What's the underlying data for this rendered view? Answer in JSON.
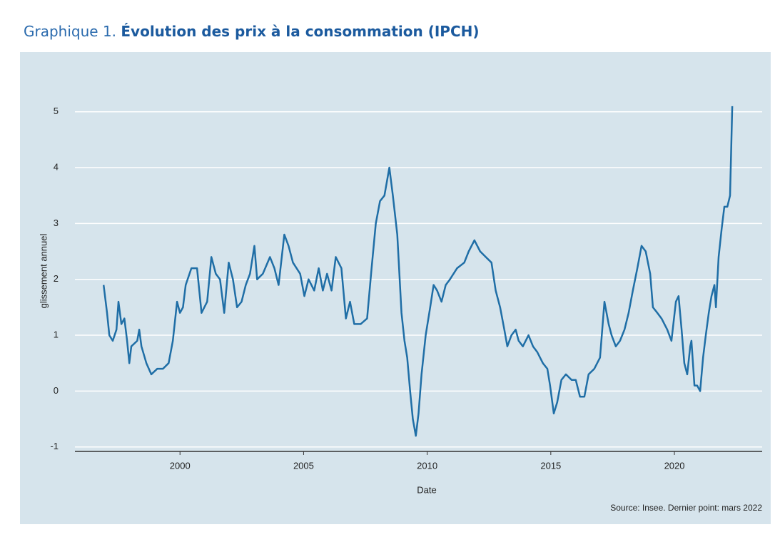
{
  "chart_data": {
    "type": "line",
    "title_prefix": "Graphique 1.",
    "title": "Évolution des prix à la consommation (IPCH)",
    "ylabel": "glissement annuel",
    "xlabel": "Date",
    "source": "Source: Insee. Dernier point: mars 2022",
    "color": "#1f6ea6",
    "grid": true,
    "xlim": [
      1995.75,
      2023.55
    ],
    "ylim": [
      -1.08,
      5.66
    ],
    "xticks": [
      2000,
      2005,
      2010,
      2015,
      2020
    ],
    "yticks": [
      -1,
      0,
      1,
      2,
      3,
      4,
      5
    ],
    "x": [
      1996.91,
      1997.05,
      1997.14,
      1997.28,
      1997.43,
      1997.51,
      1997.63,
      1997.75,
      1997.86,
      1997.95,
      1998.03,
      1998.27,
      1998.35,
      1998.44,
      1998.64,
      1998.84,
      1999.08,
      1999.31,
      1999.54,
      1999.71,
      1999.88,
      2000.0,
      2000.12,
      2000.23,
      2000.46,
      2000.69,
      2000.87,
      2001.1,
      2001.27,
      2001.45,
      2001.62,
      2001.79,
      2001.97,
      2002.14,
      2002.31,
      2002.49,
      2002.66,
      2002.83,
      2003.01,
      2003.12,
      2003.35,
      2003.64,
      2003.82,
      2003.99,
      2004.22,
      2004.39,
      2004.57,
      2004.86,
      2005.03,
      2005.2,
      2005.43,
      2005.61,
      2005.78,
      2005.95,
      2006.13,
      2006.3,
      2006.53,
      2006.71,
      2006.88,
      2007.05,
      2007.31,
      2007.57,
      2007.75,
      2007.92,
      2008.09,
      2008.27,
      2008.47,
      2008.61,
      2008.79,
      2008.96,
      2009.08,
      2009.19,
      2009.31,
      2009.42,
      2009.54,
      2009.65,
      2009.77,
      2009.94,
      2010.12,
      2010.26,
      2010.4,
      2010.58,
      2010.75,
      2010.92,
      2011.21,
      2011.5,
      2011.68,
      2011.91,
      2012.14,
      2012.37,
      2012.6,
      2012.77,
      2012.95,
      2013.12,
      2013.24,
      2013.41,
      2013.58,
      2013.7,
      2013.87,
      2014.1,
      2014.28,
      2014.45,
      2014.68,
      2014.86,
      2014.97,
      2015.12,
      2015.26,
      2015.43,
      2015.61,
      2015.84,
      2016.01,
      2016.18,
      2016.36,
      2016.53,
      2016.76,
      2016.99,
      2017.17,
      2017.34,
      2017.46,
      2017.63,
      2017.8,
      2017.98,
      2018.15,
      2018.32,
      2018.5,
      2018.67,
      2018.84,
      2019.02,
      2019.13,
      2019.31,
      2019.48,
      2019.71,
      2019.88,
      2020.06,
      2020.17,
      2020.29,
      2020.4,
      2020.52,
      2020.64,
      2020.69,
      2020.81,
      2020.92,
      2021.04,
      2021.16,
      2021.27,
      2021.39,
      2021.5,
      2021.62,
      2021.68,
      2021.79,
      2021.91,
      2022.02,
      2022.14,
      2022.25,
      2022.34
    ],
    "values": [
      1.9,
      1.4,
      1.0,
      0.9,
      1.1,
      1.6,
      1.2,
      1.3,
      0.9,
      0.5,
      0.8,
      0.9,
      1.1,
      0.8,
      0.5,
      0.3,
      0.4,
      0.4,
      0.5,
      0.9,
      1.6,
      1.4,
      1.5,
      1.9,
      2.2,
      2.2,
      1.4,
      1.6,
      2.4,
      2.1,
      2.0,
      1.4,
      2.3,
      2.0,
      1.5,
      1.6,
      1.9,
      2.1,
      2.6,
      2.0,
      2.1,
      2.4,
      2.2,
      1.9,
      2.8,
      2.6,
      2.3,
      2.1,
      1.7,
      2.0,
      1.8,
      2.2,
      1.8,
      2.1,
      1.8,
      2.4,
      2.2,
      1.3,
      1.6,
      1.2,
      1.2,
      1.3,
      2.2,
      3.0,
      3.4,
      3.5,
      4.0,
      3.5,
      2.8,
      1.4,
      0.9,
      0.6,
      0.0,
      -0.5,
      -0.8,
      -0.4,
      0.3,
      1.0,
      1.5,
      1.9,
      1.8,
      1.6,
      1.9,
      2.0,
      2.2,
      2.3,
      2.5,
      2.7,
      2.5,
      2.4,
      2.3,
      1.8,
      1.5,
      1.1,
      0.8,
      1.0,
      1.1,
      0.9,
      0.8,
      1.0,
      0.8,
      0.7,
      0.5,
      0.4,
      0.1,
      -0.4,
      -0.2,
      0.2,
      0.3,
      0.2,
      0.2,
      -0.1,
      -0.1,
      0.3,
      0.4,
      0.6,
      1.6,
      1.2,
      1.0,
      0.8,
      0.9,
      1.1,
      1.4,
      1.8,
      2.2,
      2.6,
      2.5,
      2.1,
      1.5,
      1.4,
      1.3,
      1.1,
      0.9,
      1.6,
      1.7,
      1.1,
      0.5,
      0.3,
      0.8,
      0.9,
      0.1,
      0.1,
      0.0,
      0.6,
      1.0,
      1.4,
      1.7,
      1.9,
      1.5,
      2.4,
      2.9,
      3.3,
      3.3,
      3.5,
      5.1
    ]
  }
}
